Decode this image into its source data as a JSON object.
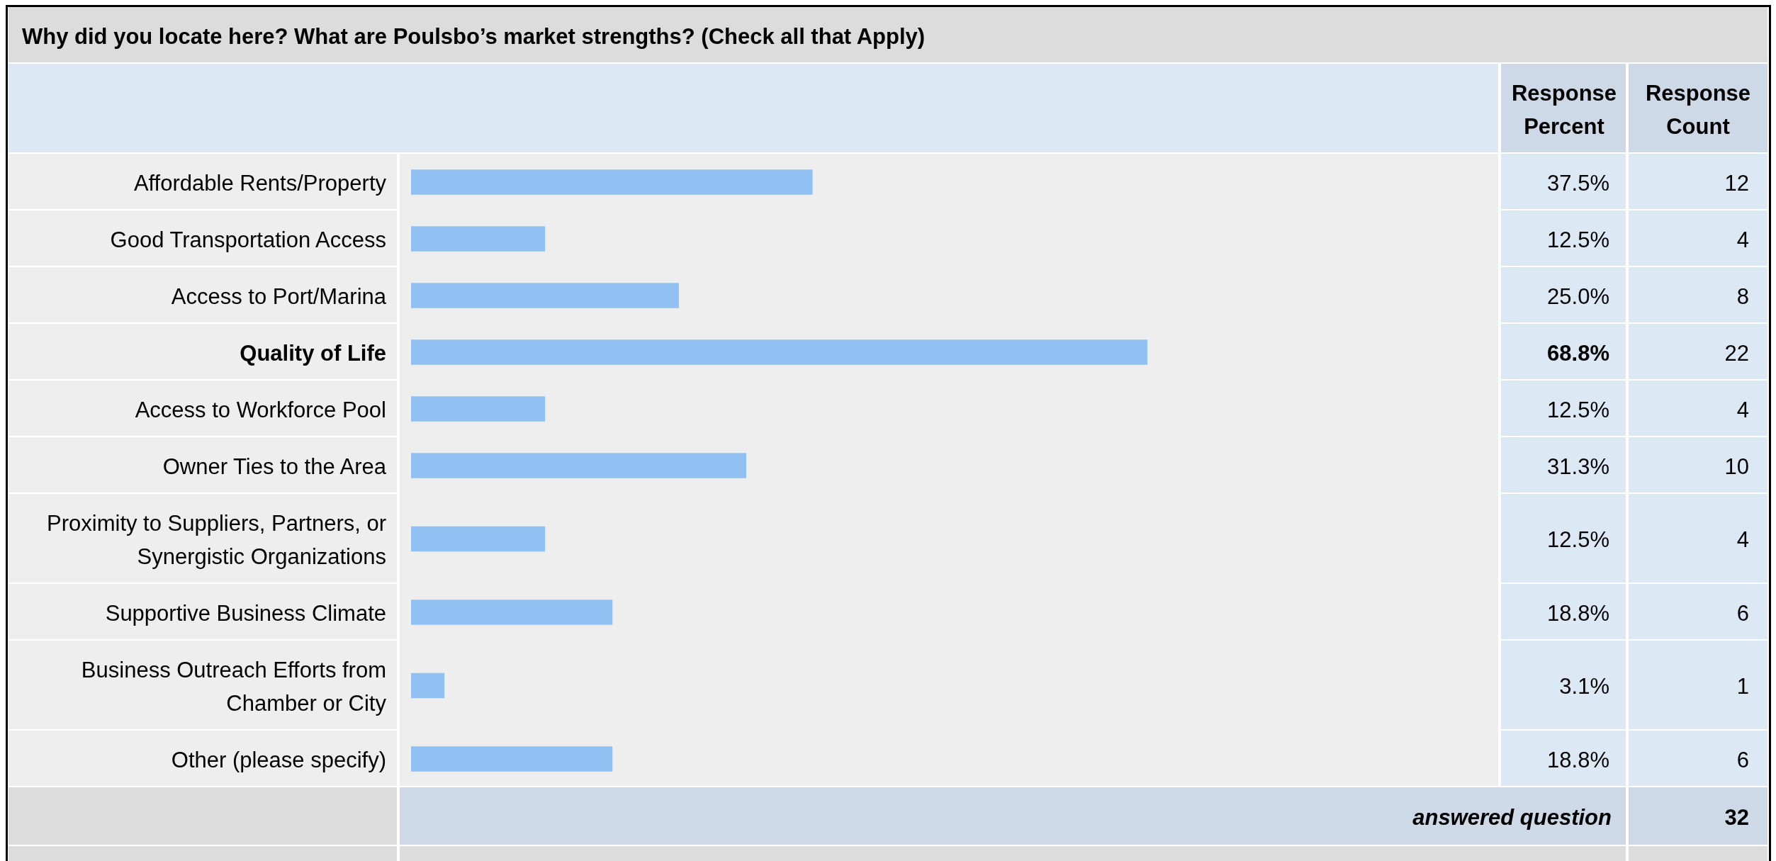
{
  "chart_data": [
    {
      "type": "bar",
      "orientation": "horizontal",
      "title": "Why did you locate here? What are Poulsbo’s market strengths? (Check all that Apply)",
      "categories": [
        "Affordable Rents/Property",
        "Good Transportation Access",
        "Access to Port/Marina",
        "Quality of Life",
        "Access to Workforce Pool",
        "Owner Ties to the Area",
        "Proximity to Suppliers, Partners, or Synergistic Organizations",
        "Supportive Business Climate",
        "Business Outreach Efforts from Chamber or City",
        "Other (please specify)"
      ],
      "tick_labels": "y",
      "series": [
        {
          "name": "Response Percent",
          "color": "#91c1f3",
          "values": [
            37.5,
            12.5,
            25.0,
            68.8,
            12.5,
            31.3,
            12.5,
            18.8,
            3.1,
            18.8
          ],
          "value_labels": [
            "37.5%",
            "12.5%",
            "25.0%",
            "68.8%",
            "12.5%",
            "31.3%",
            "12.5%",
            "18.8%",
            "3.1%",
            "18.8%"
          ]
        }
      ],
      "annotations": [
        "answered question"
      ]
    },
    {
      "type": "other",
      "title": "Response Count",
      "categories": [
        null,
        null,
        null,
        null,
        null,
        null,
        null,
        null,
        null,
        null
      ],
      "values": [
        12,
        4,
        8,
        22,
        4,
        10,
        4,
        6,
        1,
        6
      ],
      "data_labels": true,
      "annotations": [
        "32"
      ]
    }
  ]
}
